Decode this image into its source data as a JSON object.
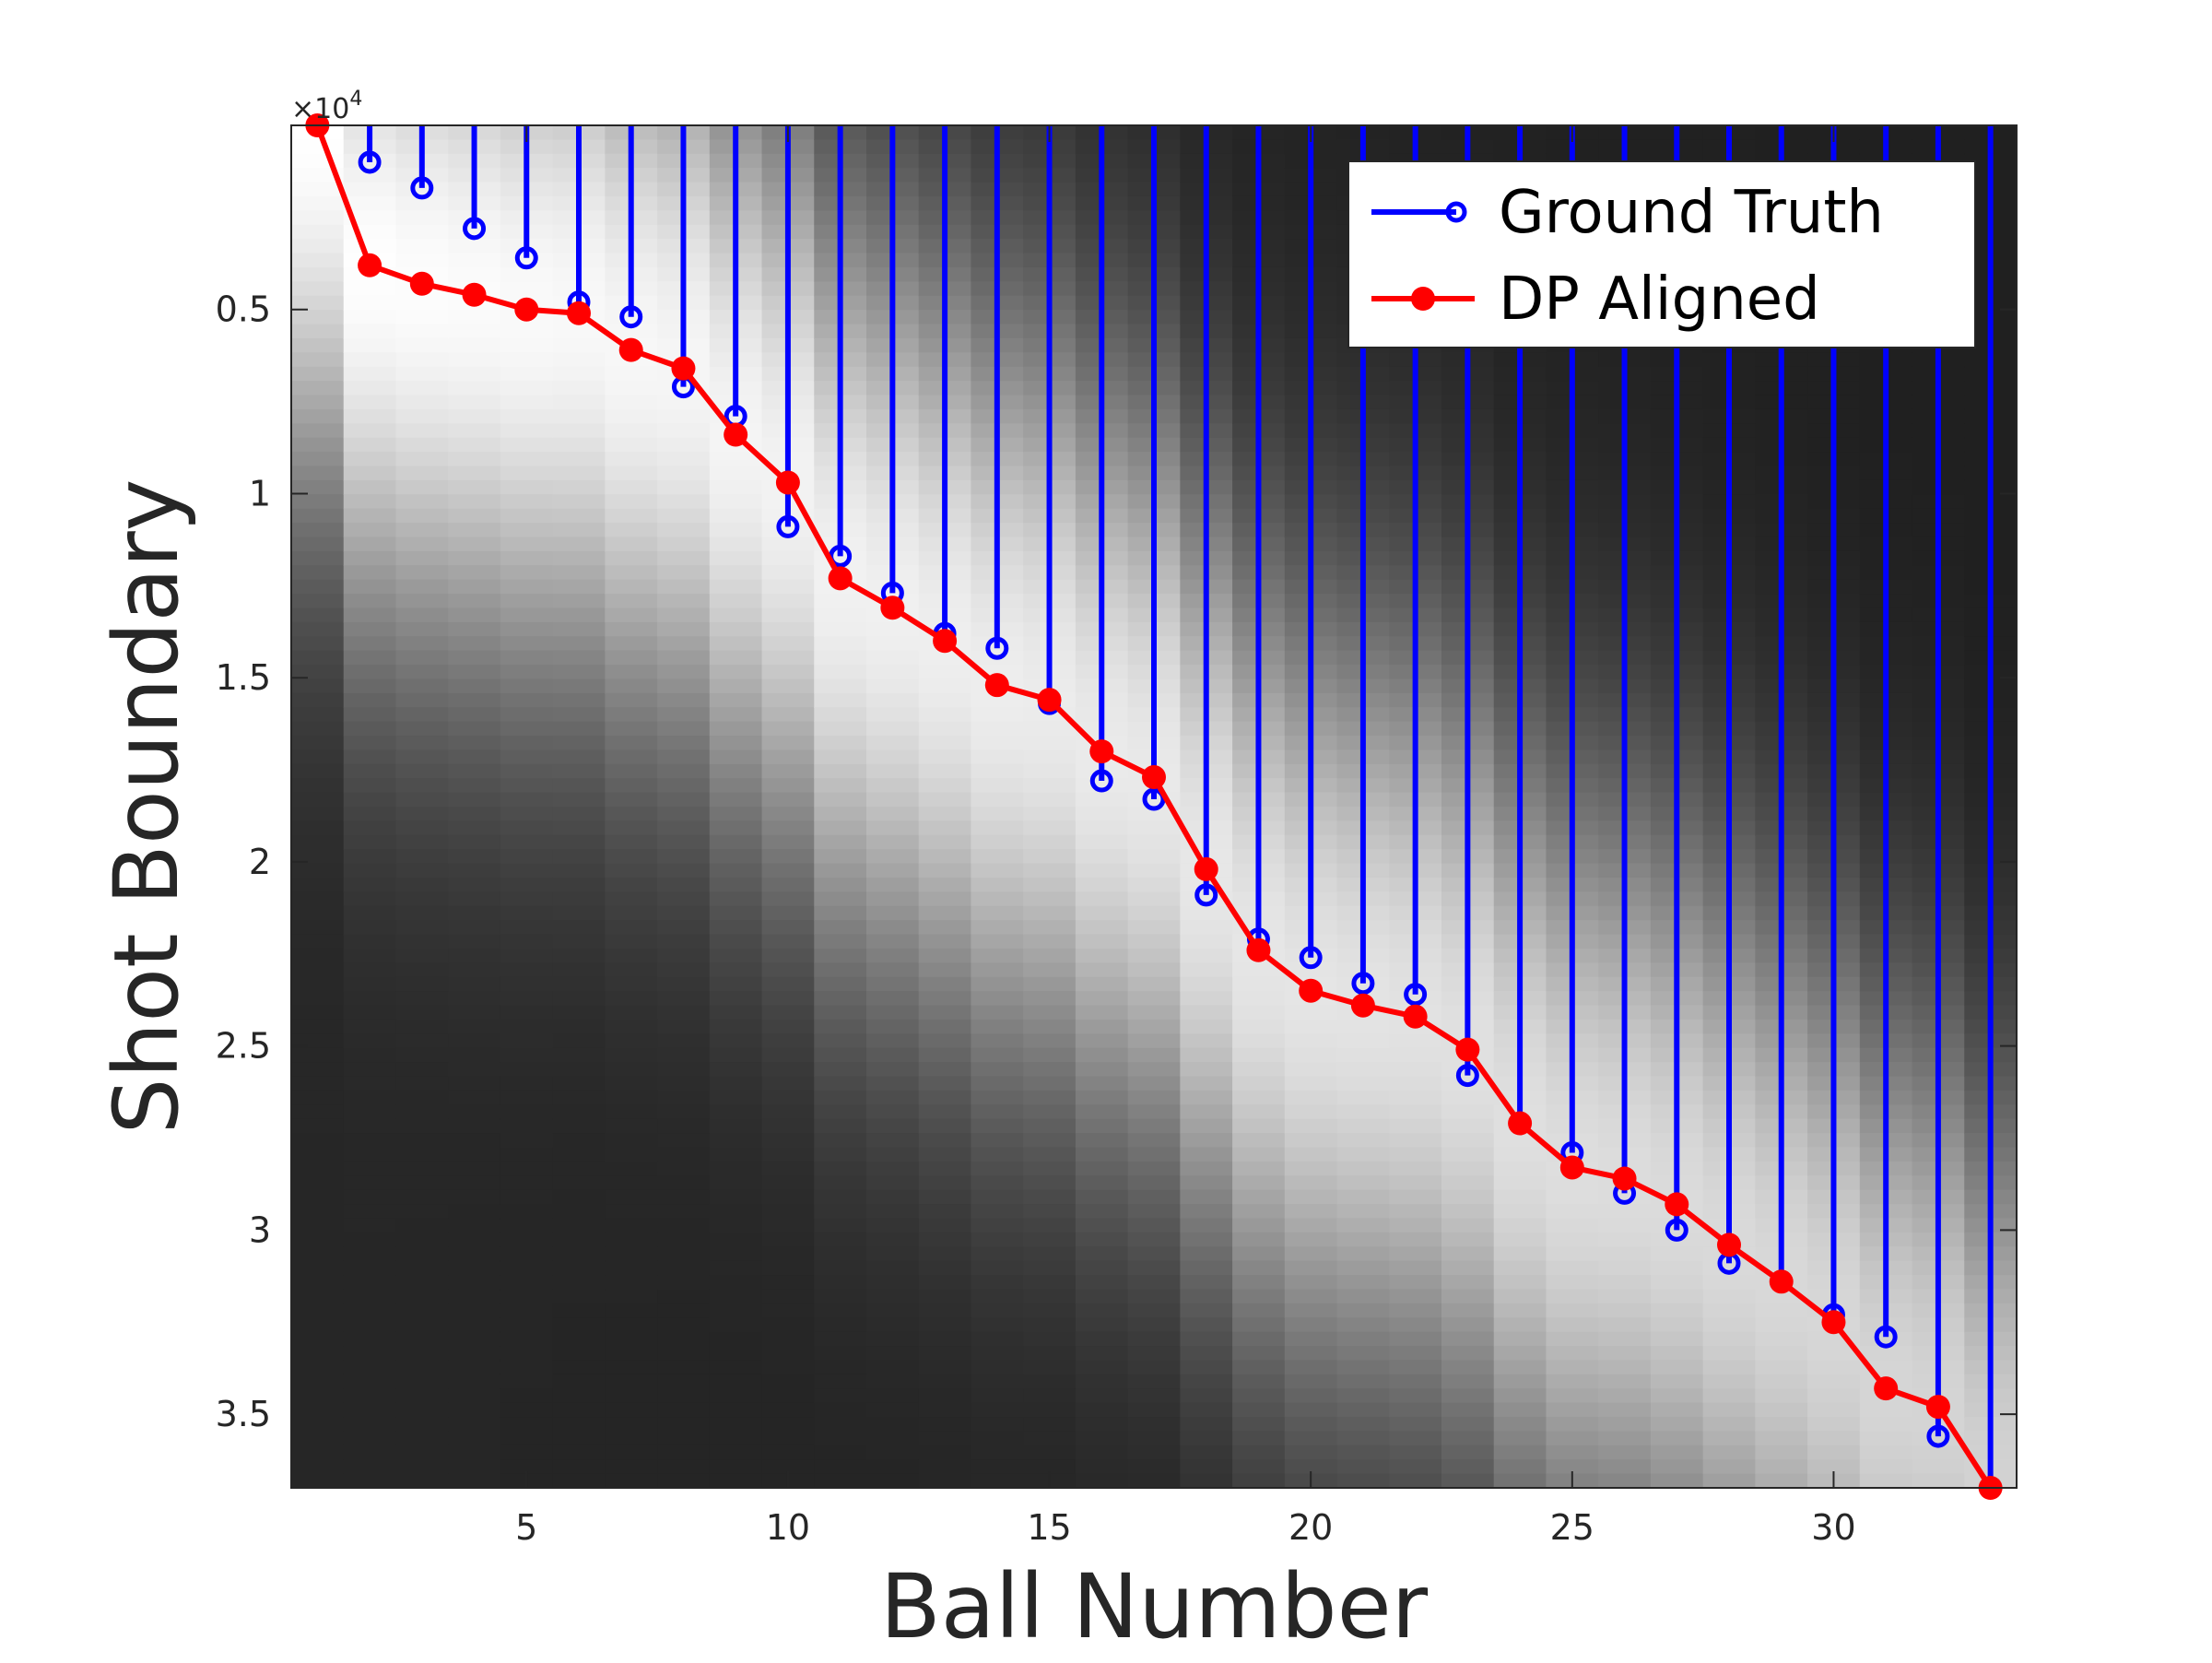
{
  "chart_data": {
    "type": "line",
    "title": "",
    "xlabel": "Ball Number",
    "ylabel": "Shot Boundary",
    "y_exponent_label": "×10",
    "y_exponent_power": "4",
    "xlim": [
      0.5,
      33.5
    ],
    "ylim": [
      0,
      37000
    ],
    "y_reversed": true,
    "x_ticks": [
      5,
      10,
      15,
      20,
      25,
      30
    ],
    "x_tick_labels": [
      "5",
      "10",
      "15",
      "20",
      "25",
      "30"
    ],
    "y_ticks": [
      5000,
      10000,
      15000,
      20000,
      25000,
      30000,
      35000
    ],
    "y_tick_labels": [
      "0.5",
      "1",
      "1.5",
      "2",
      "2.5",
      "3",
      "3.5"
    ],
    "grid": false,
    "legend_position": "top-right",
    "background": "grayscale similarity heatmap (bright near the aligned diagonal, dark away from it)",
    "x": [
      1,
      2,
      3,
      4,
      5,
      6,
      7,
      8,
      9,
      10,
      11,
      12,
      13,
      14,
      15,
      16,
      17,
      18,
      19,
      20,
      21,
      22,
      23,
      24,
      25,
      26,
      27,
      28,
      29,
      30,
      31,
      32,
      33
    ],
    "series": [
      {
        "name": "Ground Truth",
        "style": "stem",
        "color": "#0000ff",
        "marker": "open-circle",
        "values": [
          0,
          1000,
          1700,
          2800,
          3600,
          4800,
          5200,
          7100,
          7900,
          10900,
          11700,
          12700,
          13800,
          14200,
          15700,
          17800,
          18300,
          20900,
          22100,
          22600,
          23300,
          23600,
          25800,
          27100,
          27900,
          29000,
          30000,
          30900,
          31400,
          32300,
          32900,
          35600,
          37000
        ]
      },
      {
        "name": "DP Aligned",
        "style": "line",
        "color": "#ff0000",
        "marker": "filled-circle",
        "values": [
          0,
          3800,
          4300,
          4600,
          5000,
          5100,
          6100,
          6600,
          8400,
          9700,
          12300,
          13100,
          14000,
          15200,
          15600,
          17000,
          17700,
          20200,
          22400,
          23500,
          23900,
          24200,
          25100,
          27100,
          28300,
          28600,
          29300,
          30400,
          31400,
          32500,
          34300,
          34800,
          37000
        ]
      }
    ]
  },
  "colors": {
    "ground_truth": "#0000ff",
    "dp_aligned": "#ff0000",
    "axis": "#262626",
    "legend_border": "#262626",
    "legend_background": "#ffffff"
  }
}
